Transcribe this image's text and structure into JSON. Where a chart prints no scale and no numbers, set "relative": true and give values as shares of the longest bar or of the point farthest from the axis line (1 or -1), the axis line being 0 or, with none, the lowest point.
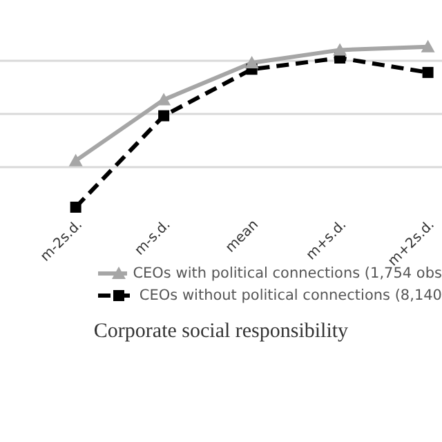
{
  "chart_data": {
    "type": "line",
    "xlabel": "Corporate social responsibility",
    "categories": [
      "m-2s.d.",
      "m-s.d.",
      "mean",
      "m+s.d.",
      "m+2s.d."
    ],
    "relative": true,
    "grid": "y",
    "legend": "bottom",
    "series": [
      {
        "name": "CEOs with political connections (1,754 obs",
        "color": "#a6a6a6",
        "values": [
          0.29,
          0.67,
          0.9,
          0.98,
          1
        ],
        "marker": "triangle",
        "line_style": "solid"
      },
      {
        "name": "CEOs without political connections (8,140",
        "color": "#000000",
        "values": [
          0,
          0.57,
          0.86,
          0.93,
          0.84
        ],
        "marker": "square",
        "line_style": "dashed"
      }
    ]
  }
}
